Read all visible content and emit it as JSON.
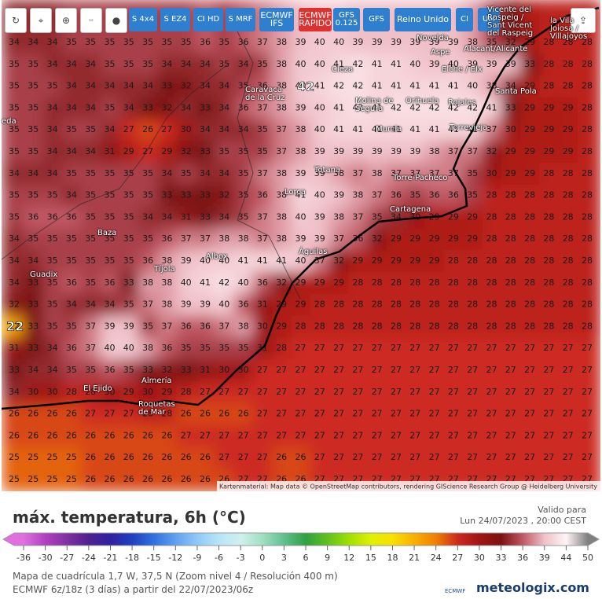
{
  "toolbar": [
    "S 4x4",
    "S EZ4",
    "CI HD",
    "S MRF",
    "ECMWF IFS",
    "ECMWF RAPIDO",
    "GFS 0.125",
    "GFS",
    "Reino Unido",
    "CI",
    "UM"
  ],
  "places": [
    "Novelda",
    "Aspe",
    "Alacant/Alicante",
    "Elche / Elx",
    "Santa Pola",
    "Cieza",
    "Caravaca de la Cruz",
    "Molina de Segura",
    "Orihuela",
    "Rojales",
    "Murcia",
    "Torrevieja",
    "Totana",
    "Torre-Pacheco",
    "Lorca",
    "Cartagena",
    "Baza",
    "Albox",
    "Águilas",
    "Tíjola",
    "Guadix",
    "El Ejido",
    "Almería",
    "Roquetas de Mar",
    "Vicente del Raspeig / Sant Vicent del Raspeig",
    "la Vila Joiosa / Villajoyos",
    "eda"
  ],
  "highlights": [
    "42",
    "22"
  ],
  "grid": [
    [
      34,
      34,
      34,
      35,
      35,
      35,
      35,
      35,
      35,
      35,
      36,
      35,
      36,
      37,
      38,
      39,
      40,
      40,
      39,
      39,
      39,
      39,
      39,
      39,
      38,
      35,
      32,
      29,
      28,
      28,
      28
    ],
    [
      35,
      35,
      34,
      34,
      34,
      35,
      35,
      35,
      34,
      34,
      34,
      35,
      34,
      35,
      38,
      40,
      40,
      41,
      42,
      41,
      41,
      40,
      39,
      40,
      39,
      39,
      39,
      33,
      28,
      28,
      28
    ],
    [
      35,
      35,
      35,
      34,
      34,
      34,
      34,
      34,
      33,
      32,
      34,
      34,
      35,
      36,
      38,
      40,
      41,
      42,
      42,
      41,
      41,
      41,
      41,
      41,
      40,
      38,
      34,
      29,
      28,
      28,
      28
    ],
    [
      35,
      35,
      34,
      34,
      34,
      35,
      34,
      33,
      32,
      34,
      33,
      34,
      36,
      37,
      38,
      39,
      40,
      41,
      42,
      41,
      42,
      42,
      42,
      42,
      42,
      41,
      33,
      29,
      29,
      29,
      28
    ],
    [
      35,
      35,
      34,
      35,
      35,
      34,
      27,
      26,
      27,
      30,
      34,
      34,
      34,
      35,
      37,
      38,
      40,
      41,
      41,
      41,
      41,
      41,
      41,
      41,
      41,
      37,
      30,
      29,
      29,
      29,
      28
    ],
    [
      35,
      35,
      34,
      34,
      34,
      31,
      29,
      27,
      29,
      32,
      33,
      35,
      35,
      35,
      37,
      38,
      39,
      39,
      39,
      39,
      39,
      39,
      38,
      37,
      37,
      32,
      29,
      29,
      29,
      29,
      28
    ],
    [
      34,
      34,
      34,
      35,
      35,
      35,
      35,
      35,
      34,
      35,
      34,
      34,
      35,
      37,
      38,
      39,
      39,
      38,
      37,
      38,
      37,
      37,
      37,
      37,
      35,
      30,
      29,
      29,
      28,
      28,
      28
    ],
    [
      35,
      35,
      35,
      34,
      35,
      35,
      35,
      35,
      33,
      33,
      33,
      32,
      35,
      36,
      38,
      41,
      40,
      39,
      38,
      37,
      36,
      35,
      36,
      36,
      35,
      28,
      28,
      28,
      28,
      28,
      28
    ],
    [
      35,
      36,
      36,
      36,
      35,
      35,
      35,
      34,
      34,
      31,
      33,
      34,
      35,
      37,
      38,
      40,
      39,
      38,
      37,
      35,
      34,
      30,
      29,
      29,
      29,
      28,
      28,
      28,
      28,
      28,
      28
    ],
    [
      34,
      35,
      35,
      35,
      35,
      35,
      35,
      35,
      36,
      37,
      37,
      38,
      38,
      37,
      38,
      39,
      39,
      37,
      36,
      32,
      29,
      29,
      29,
      29,
      29,
      28,
      28,
      28,
      28,
      28,
      28
    ],
    [
      34,
      34,
      35,
      35,
      35,
      35,
      35,
      36,
      38,
      39,
      40,
      40,
      41,
      41,
      41,
      40,
      37,
      32,
      29,
      29,
      29,
      29,
      29,
      28,
      28,
      28,
      28,
      28,
      28,
      28,
      28
    ],
    [
      34,
      33,
      35,
      36,
      35,
      36,
      33,
      38,
      38,
      40,
      41,
      42,
      40,
      36,
      32,
      29,
      29,
      29,
      28,
      28,
      28,
      28,
      28,
      28,
      28,
      28,
      28,
      28,
      28,
      28,
      28
    ],
    [
      32,
      33,
      35,
      34,
      34,
      34,
      35,
      37,
      38,
      39,
      39,
      40,
      36,
      31,
      29,
      29,
      28,
      28,
      28,
      28,
      28,
      28,
      28,
      28,
      28,
      28,
      28,
      28,
      28,
      28,
      28
    ],
    [
      22,
      33,
      35,
      35,
      37,
      39,
      39,
      35,
      37,
      36,
      36,
      37,
      38,
      30,
      29,
      28,
      28,
      28,
      28,
      28,
      28,
      28,
      28,
      28,
      28,
      28,
      28,
      28,
      28,
      28,
      28
    ],
    [
      31,
      33,
      34,
      36,
      37,
      40,
      40,
      38,
      36,
      35,
      35,
      35,
      35,
      31,
      28,
      27,
      27,
      27,
      27,
      27,
      27,
      27,
      27,
      27,
      27,
      27,
      27,
      27,
      27,
      27,
      27
    ],
    [
      33,
      34,
      34,
      35,
      35,
      36,
      35,
      33,
      32,
      33,
      31,
      30,
      30,
      27,
      27,
      27,
      27,
      27,
      27,
      27,
      27,
      27,
      27,
      27,
      27,
      27,
      27,
      27,
      27,
      27,
      27
    ],
    [
      34,
      30,
      30,
      28,
      28,
      30,
      29,
      30,
      29,
      28,
      27,
      27,
      27,
      27,
      27,
      27,
      27,
      27,
      27,
      27,
      27,
      27,
      27,
      27,
      27,
      27,
      27,
      27,
      27,
      27,
      27
    ],
    [
      26,
      26,
      26,
      26,
      27,
      27,
      27,
      28,
      28,
      26,
      26,
      26,
      26,
      27,
      27,
      27,
      27,
      27,
      27,
      27,
      27,
      27,
      27,
      27,
      27,
      27,
      27,
      27,
      27,
      27,
      27
    ],
    [
      26,
      26,
      26,
      26,
      26,
      26,
      26,
      26,
      26,
      27,
      27,
      27,
      27,
      27,
      27,
      27,
      27,
      27,
      27,
      27,
      27,
      27,
      27,
      27,
      27,
      27,
      27,
      27,
      27,
      27,
      27
    ],
    [
      25,
      25,
      25,
      25,
      26,
      26,
      26,
      26,
      26,
      26,
      26,
      27,
      27,
      27,
      26,
      26,
      27,
      27,
      27,
      27,
      27,
      27,
      27,
      27,
      27,
      27,
      27,
      27,
      27,
      27,
      27
    ],
    [
      25,
      25,
      25,
      25,
      26,
      26,
      26,
      26,
      26,
      26,
      26,
      26,
      27,
      27,
      26,
      26,
      27,
      27,
      27,
      27,
      27,
      27,
      27,
      27,
      27,
      27,
      27,
      27,
      27,
      27,
      27
    ]
  ],
  "legend": {
    "ticks": [
      -36,
      -30,
      -27,
      -24,
      -21,
      -18,
      -15,
      -12,
      -9,
      -6,
      -3,
      0,
      3,
      6,
      9,
      12,
      15,
      18,
      21,
      24,
      27,
      30,
      33,
      36,
      39,
      44,
      50
    ],
    "colors": [
      "#e070e0",
      "#b040c0",
      "#8030a0",
      "#502090",
      "#3020a0",
      "#2040c0",
      "#3070e0",
      "#60a0f0",
      "#90c8f8",
      "#b8e4f8",
      "#d0f0f0",
      "#a0e0c0",
      "#60c090",
      "#30a040",
      "#60c020",
      "#a0e000",
      "#e0f000",
      "#f8e000",
      "#f8b000",
      "#f08000",
      "#cc2a20",
      "#a01414",
      "#7c1212",
      "#c05864",
      "#f0c0c8",
      "#fff4f6",
      "#808080"
    ]
  },
  "attribution": "Kartenmaterial: Map data © OpenStreetMap contributors, rendering GIScience Research Group @ Heidelberg University",
  "footer": {
    "title": "máx. temperatura, 6h (°C)",
    "valid_label": "Valido para",
    "valid_time": "Lun 24/07/2023 , 20:00 CEST",
    "grid_info": "Mapa de cuadrícula 1,7 W, 37,5 N (Zoom nivel 4 / Resolución 400 m)",
    "model_info": "ECMWF 6z/18z (3 días) a partir del 22/07/2023/06z",
    "ecmwf": "ECMWF",
    "brand": "meteologix.com"
  }
}
